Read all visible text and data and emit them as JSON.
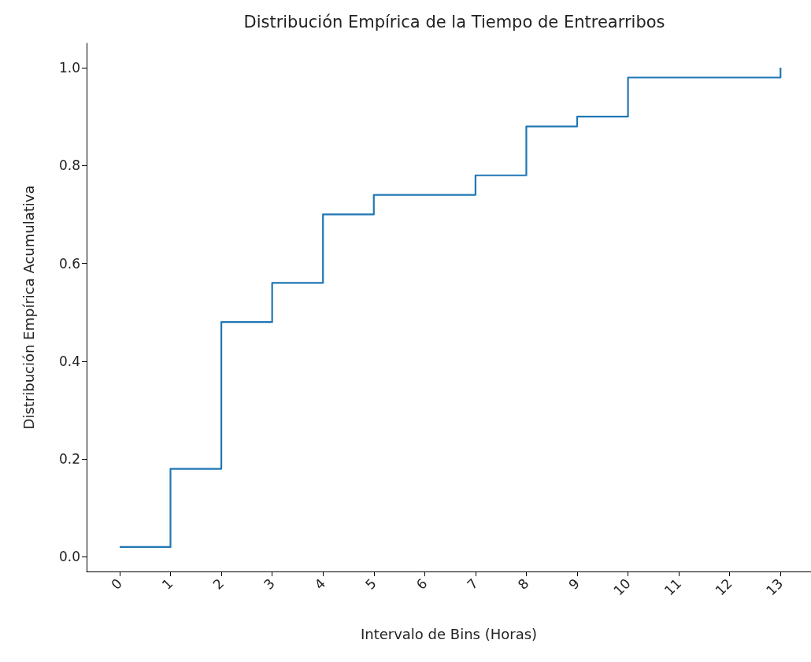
{
  "chart_data": {
    "type": "step",
    "title": "Distribución Empírica de la Tiempo de Entrearribos",
    "xlabel": "Intervalo de Bins (Horas)",
    "ylabel": "Distribución Empírica Acumulativa",
    "x": [
      0,
      1,
      2,
      3,
      4,
      5,
      7,
      8,
      9,
      10,
      13
    ],
    "series": [
      {
        "color": "#1f77b4",
        "values": [
          0.02,
          0.18,
          0.48,
          0.56,
          0.7,
          0.74,
          0.78,
          0.88,
          0.9,
          0.98,
          1.0
        ]
      }
    ],
    "xlim": [
      -0.65,
      13.6
    ],
    "xticks": [
      0,
      1,
      2,
      3,
      4,
      5,
      6,
      7,
      8,
      9,
      10,
      11,
      12,
      13
    ],
    "ylim": [
      -0.03,
      1.05
    ],
    "yticks": [
      {
        "value": 0,
        "label": "0.0"
      },
      {
        "value": 0.2,
        "label": "0.2"
      },
      {
        "value": 0.4,
        "label": "0.4"
      },
      {
        "value": 0.6,
        "label": "0.6"
      },
      {
        "value": 0.8,
        "label": "0.8"
      },
      {
        "value": 1,
        "label": "1.0"
      }
    ],
    "marker": "none",
    "line_style": "solid"
  }
}
